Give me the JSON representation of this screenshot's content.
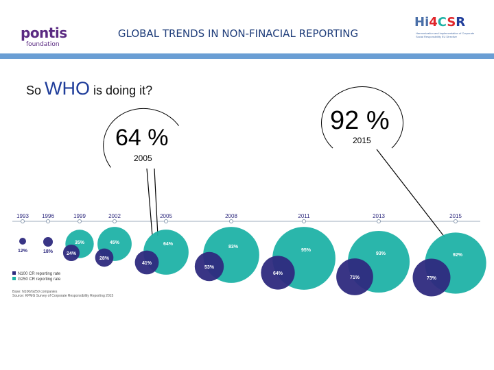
{
  "header": {
    "logo_left_line1": "pontis",
    "logo_left_line2": "foundation",
    "title": "GLOBAL TRENDS IN NON-FINACIAL REPORTING",
    "logo_right_brand": "Hi4CSR",
    "logo_right_subtitle": "Harmonization and implementation of Corporate Social Responsibility EU Directive"
  },
  "question": {
    "prefix": "So",
    "who": "WHO",
    "suffix": "is doing it?"
  },
  "callouts": {
    "left_pct": "64 %",
    "left_year": "2005",
    "right_pct": "92 %",
    "right_year": "2015"
  },
  "colors": {
    "n100": "#2e2a7e",
    "g250": "#1fb2a6",
    "title_blue": "#1f3d7a",
    "header_bar": "#6a9ed4"
  },
  "chart_data": {
    "type": "bubble",
    "categories": [
      "1993",
      "1996",
      "1999",
      "2002",
      "2005",
      "2008",
      "2011",
      "2013",
      "2015"
    ],
    "series": [
      {
        "name": "N100 CR reporting rate",
        "color": "#2e2a7e",
        "values": [
          12,
          18,
          24,
          28,
          41,
          53,
          64,
          71,
          73
        ]
      },
      {
        "name": "G250 CR reporting rate",
        "color": "#1fb2a6",
        "values": [
          null,
          null,
          35,
          45,
          64,
          83,
          95,
          93,
          92
        ]
      }
    ],
    "value_labels": {
      "n100": [
        "12%",
        "18%",
        "24%",
        "28%",
        "41%",
        "53%",
        "64%",
        "71%",
        "73%"
      ],
      "g250": [
        "",
        "",
        "35%",
        "45%",
        "64%",
        "83%",
        "95%",
        "93%",
        "92%"
      ]
    },
    "legend": [
      "N100 CR reporting rate",
      "G250 CR reporting rate"
    ],
    "footnotes": [
      "Base: N100/G250 companies",
      "Source: KPMG Survey of Corporate Responsibility Reporting 2015"
    ]
  }
}
